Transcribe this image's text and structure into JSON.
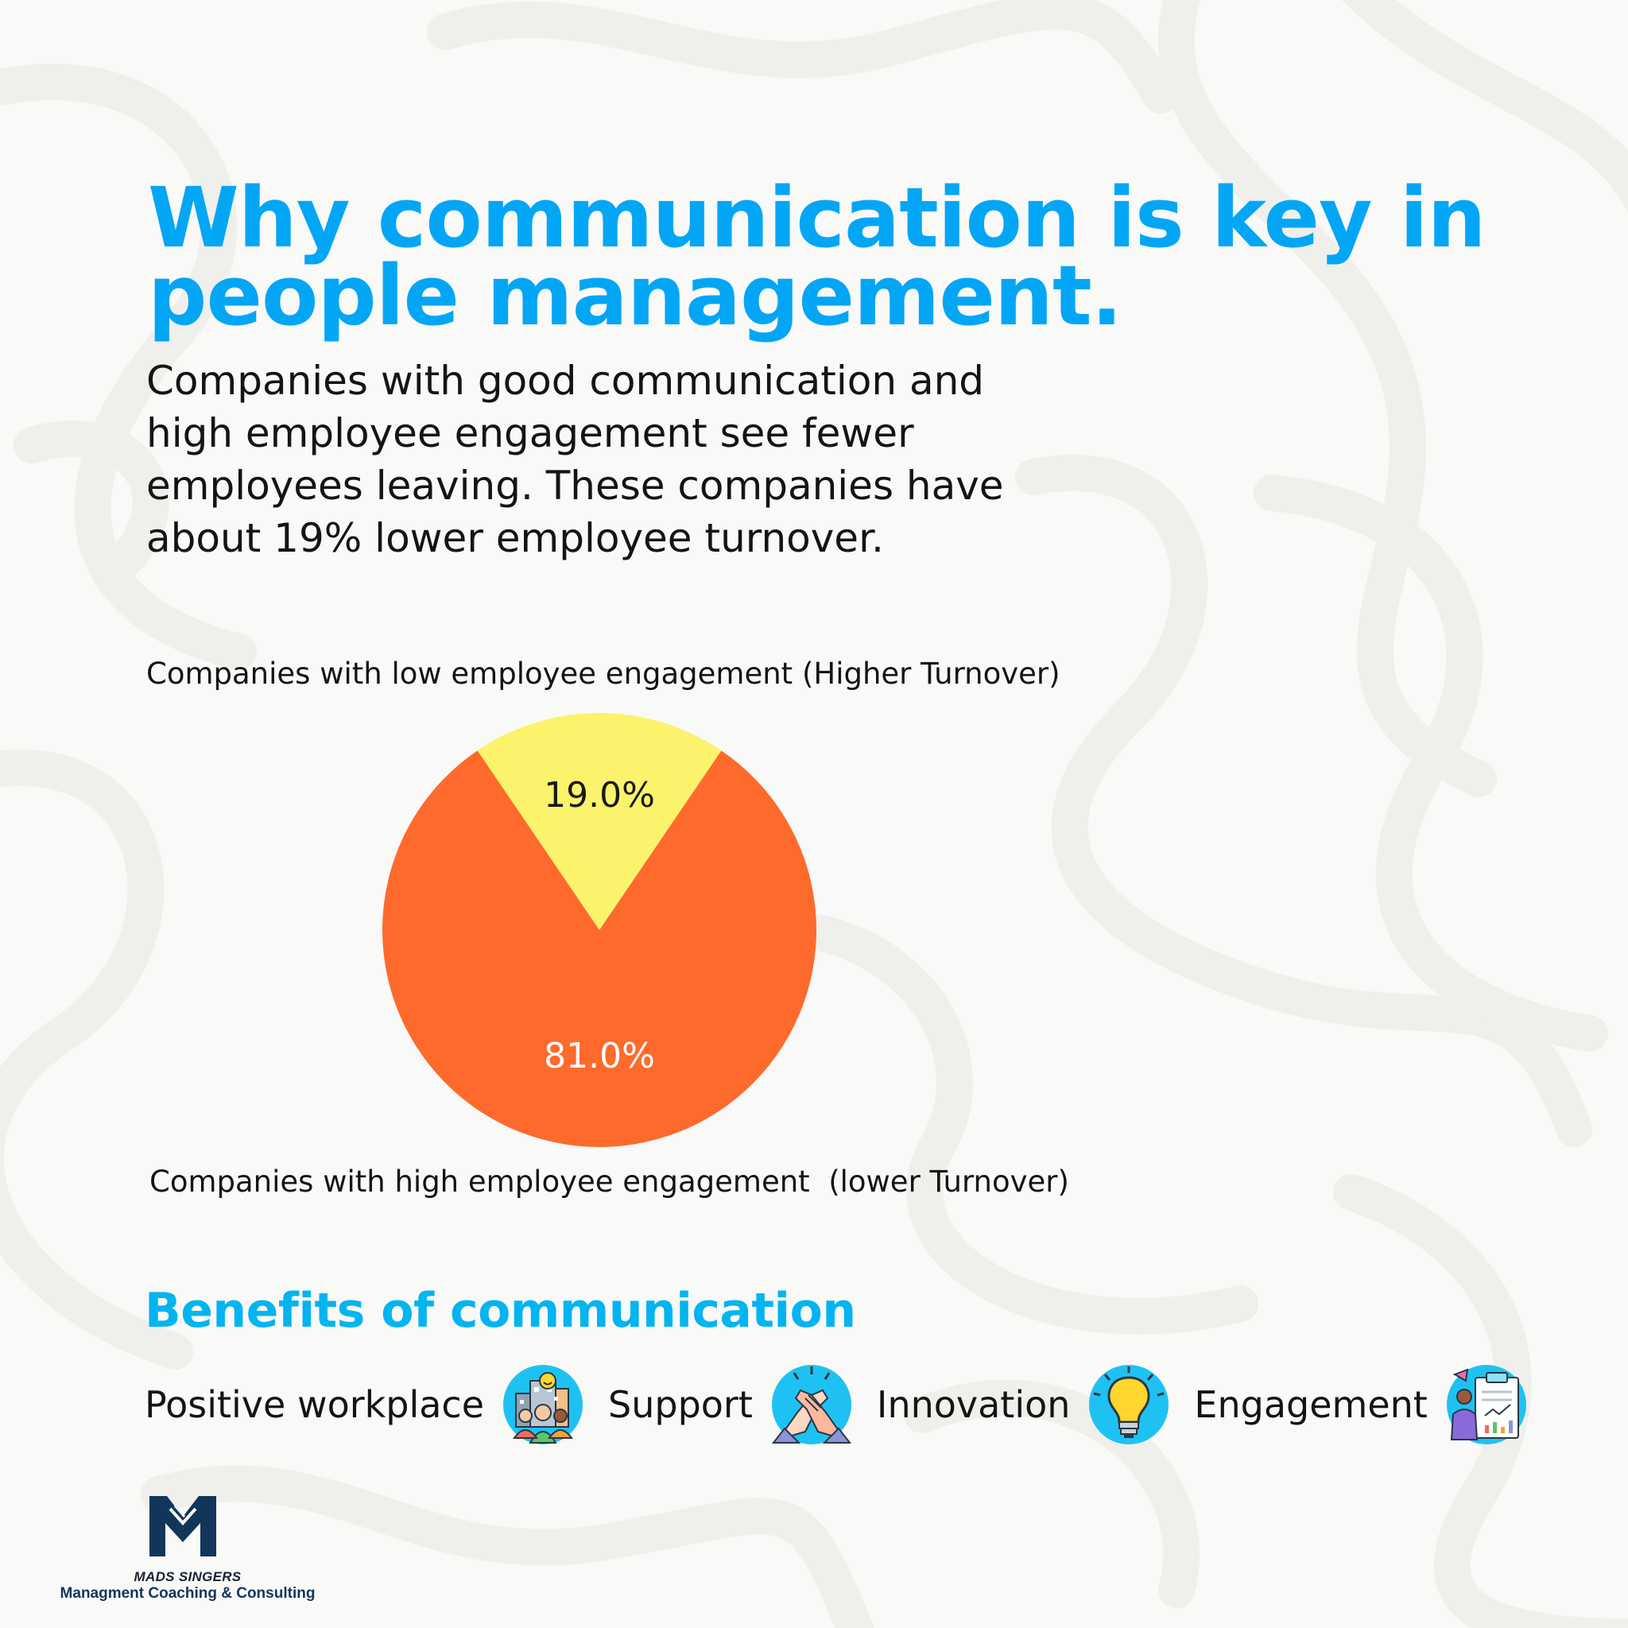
{
  "theme": {
    "accent": "#03a6f5",
    "benefits_accent": "#03b4f0",
    "text": "#141414",
    "logo_navy": "#12365a"
  },
  "title": {
    "line1": "Why communication is key in",
    "line2": "people management."
  },
  "intro": "Companies with good communication and high employee engagement see fewer employees leaving. These companies have about 19% lower employee turnover.",
  "chart_data": {
    "type": "pie",
    "categories": [
      "Companies with low employee engagement (Higher Turnover)",
      "Companies with high employee engagement  (lower Turnover)"
    ],
    "values": [
      19.0,
      81.0
    ],
    "labels": [
      "19.0%",
      "81.0%"
    ],
    "colors": [
      "#fbf36b",
      "#fe6a2c"
    ],
    "label_colors": [
      "#1a1a1a",
      "#ffffff"
    ]
  },
  "benefits": {
    "title": "Benefits of communication",
    "items": [
      {
        "label": "Positive workplace",
        "icon": "positive-workplace-icon"
      },
      {
        "label": "Support",
        "icon": "handshake-icon"
      },
      {
        "label": "Innovation",
        "icon": "lightbulb-icon"
      },
      {
        "label": "Engagement",
        "icon": "engagement-report-icon"
      }
    ]
  },
  "logo": {
    "name": "MADS SINGERS",
    "tagline": "Managment Coaching & Consulting"
  }
}
